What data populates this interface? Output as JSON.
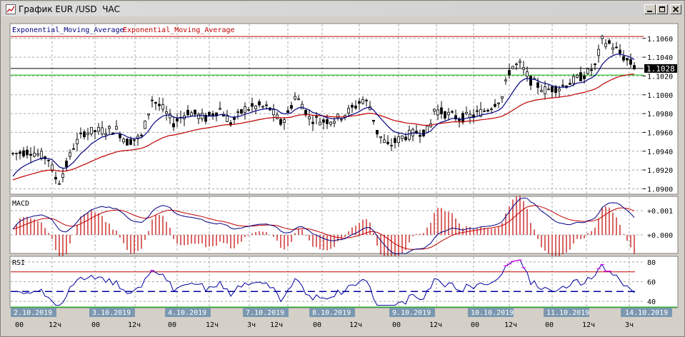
{
  "window": {
    "title": "График EUR /USD  ЧАС",
    "app_icon": "chart-icon",
    "buttons": [
      {
        "name": "minimize-button",
        "icon": "minimize-icon"
      },
      {
        "name": "maximize-button",
        "icon": "maximize-icon"
      },
      {
        "name": "close-button",
        "icon": "close-icon"
      }
    ]
  },
  "colors": {
    "background": "#ffffff",
    "frame": "#d4d0c8",
    "candle": "#000000",
    "ema_fast": "#000080",
    "ema_slow": "#c00000",
    "upper_level": "#c00000",
    "lower_level": "#00c000",
    "price_label_bg": "#000000",
    "macd_hist": "#c00000",
    "rsi_line": "#0000a0",
    "rsi_overbought_line": "#ff00ff",
    "date_tag_bg": "#7c98b0"
  },
  "legend": {
    "ema_fast": "Exponential_Moving_Average",
    "ema_slow": "Exponential_Moving_Average"
  },
  "chart_data": [
    {
      "type": "candlestick",
      "panel": "price",
      "instrument": "EUR/USD",
      "timeframe": "ЧАС",
      "ylim": [
        1.0895,
        1.1075
      ],
      "yticks": [
        "1.1060",
        "1.1040",
        "1.1020",
        "1.1000",
        "1.0980",
        "1.0960",
        "1.0940",
        "1.0920",
        "1.0900"
      ],
      "current_price": "1.1028",
      "levels": {
        "upper": 1.1062,
        "lower": 1.1021
      },
      "grid": true,
      "series_names": [
        "Exponential_Moving_Average",
        "Exponential_Moving_Average"
      ]
    },
    {
      "type": "line",
      "panel": "macd",
      "label": "MACD",
      "yticks": [
        "+0.001",
        "+0.000"
      ],
      "grid": true
    },
    {
      "type": "line",
      "panel": "rsi",
      "label": "RSI",
      "ylim": [
        35,
        85
      ],
      "yticks": [
        "80",
        "60",
        "40"
      ],
      "levels": {
        "overbought": 70,
        "mid": 50
      },
      "grid": true
    }
  ],
  "time_axis": {
    "dates": [
      "2.10.2019",
      "3.10.2019",
      "4.10.2019",
      "7.10.2019",
      "8.10.2019",
      "9.10.2019",
      "10.10.2019",
      "11.10.2019",
      "14.10.2019"
    ],
    "hour_labels": [
      "00",
      "12ч",
      "00",
      "12ч",
      "00",
      "12ч",
      "3ч",
      "12ч",
      "00",
      "12ч",
      "00",
      "12ч",
      "00",
      "12ч",
      "00",
      "12ч",
      "3ч"
    ]
  }
}
